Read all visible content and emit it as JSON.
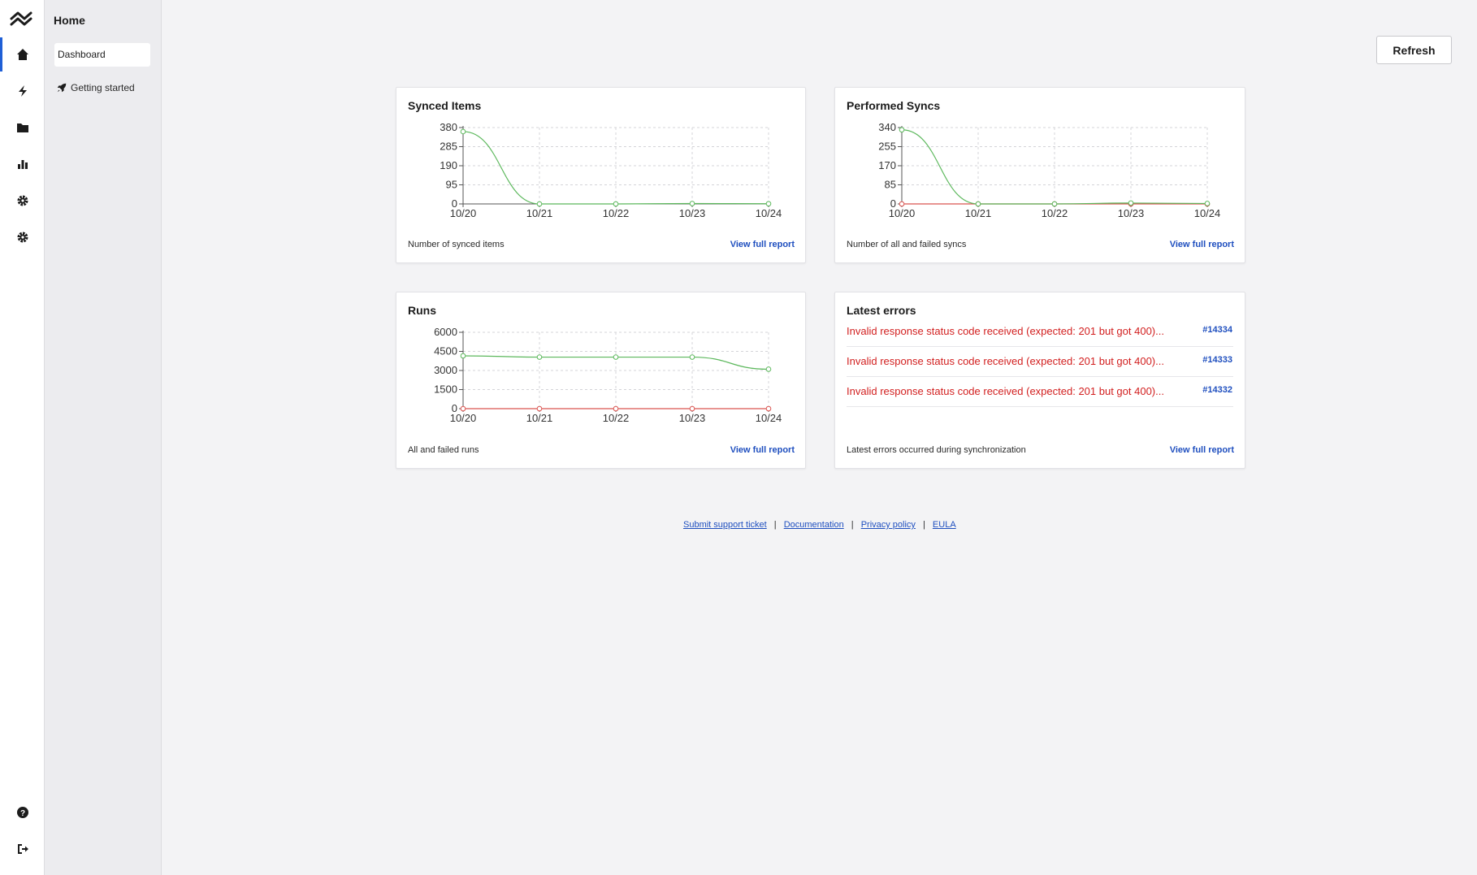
{
  "subnav": {
    "title": "Home",
    "items": [
      {
        "label": "Dashboard",
        "active": true
      },
      {
        "label": "Getting started"
      }
    ]
  },
  "rail": {
    "icons": [
      "home-icon",
      "bolt-icon",
      "folder-icon",
      "bar-chart-icon",
      "gear-icon",
      "gear-icon"
    ],
    "bottom_icons": [
      "help-icon",
      "logout-icon"
    ],
    "accent": "#1f5fd6"
  },
  "toolbar": {
    "refresh_label": "Refresh"
  },
  "cards": {
    "synced": {
      "title": "Synced Items",
      "footer": "Number of synced items",
      "link": "View full report"
    },
    "syncs": {
      "title": "Performed Syncs",
      "footer": "Number of all and failed syncs",
      "link": "View full report"
    },
    "runs": {
      "title": "Runs",
      "footer": "All and failed runs",
      "link": "View full report"
    },
    "errors": {
      "title": "Latest errors",
      "footer": "Latest errors occurred during synchronization",
      "link": "View full report",
      "items": [
        {
          "message": "Invalid response status code received (expected: 201 but got 400)...",
          "id": "#14334"
        },
        {
          "message": "Invalid response status code received (expected: 201 but got 400)...",
          "id": "#14333"
        },
        {
          "message": "Invalid response status code received (expected: 201 but got 400)...",
          "id": "#14332"
        }
      ]
    }
  },
  "chart_data": [
    {
      "type": "line",
      "title": "Synced Items",
      "categories": [
        "10/20",
        "10/21",
        "10/22",
        "10/23",
        "10/24"
      ],
      "y_ticks": [
        "380",
        "285",
        "190",
        "95",
        "0"
      ],
      "ylim": [
        0,
        380
      ],
      "series": [
        {
          "color": "#5cb85c",
          "values": [
            360,
            0,
            0,
            2,
            1
          ]
        }
      ],
      "grid": true
    },
    {
      "type": "line",
      "title": "Performed Syncs",
      "categories": [
        "10/20",
        "10/21",
        "10/22",
        "10/23",
        "10/24"
      ],
      "y_ticks": [
        "340",
        "255",
        "170",
        "85",
        "0"
      ],
      "ylim": [
        0,
        340
      ],
      "series": [
        {
          "color": "#5cb85c",
          "values": [
            330,
            0,
            0,
            4,
            2
          ]
        },
        {
          "color": "#d9534f",
          "values": [
            0,
            0,
            0,
            0,
            0
          ]
        }
      ],
      "grid": true
    },
    {
      "type": "line",
      "title": "Runs",
      "categories": [
        "10/20",
        "10/21",
        "10/22",
        "10/23",
        "10/24"
      ],
      "y_ticks": [
        "6000",
        "4500",
        "3000",
        "1500",
        "0"
      ],
      "ylim": [
        0,
        6000
      ],
      "series": [
        {
          "color": "#5cb85c",
          "values": [
            4150,
            4050,
            4050,
            4050,
            3100
          ]
        },
        {
          "color": "#d9534f",
          "values": [
            0,
            0,
            0,
            0,
            0
          ]
        }
      ],
      "grid": true
    }
  ],
  "footer": {
    "links": [
      "Submit support ticket",
      "Documentation",
      "Privacy policy",
      "EULA"
    ],
    "separator": "|"
  }
}
